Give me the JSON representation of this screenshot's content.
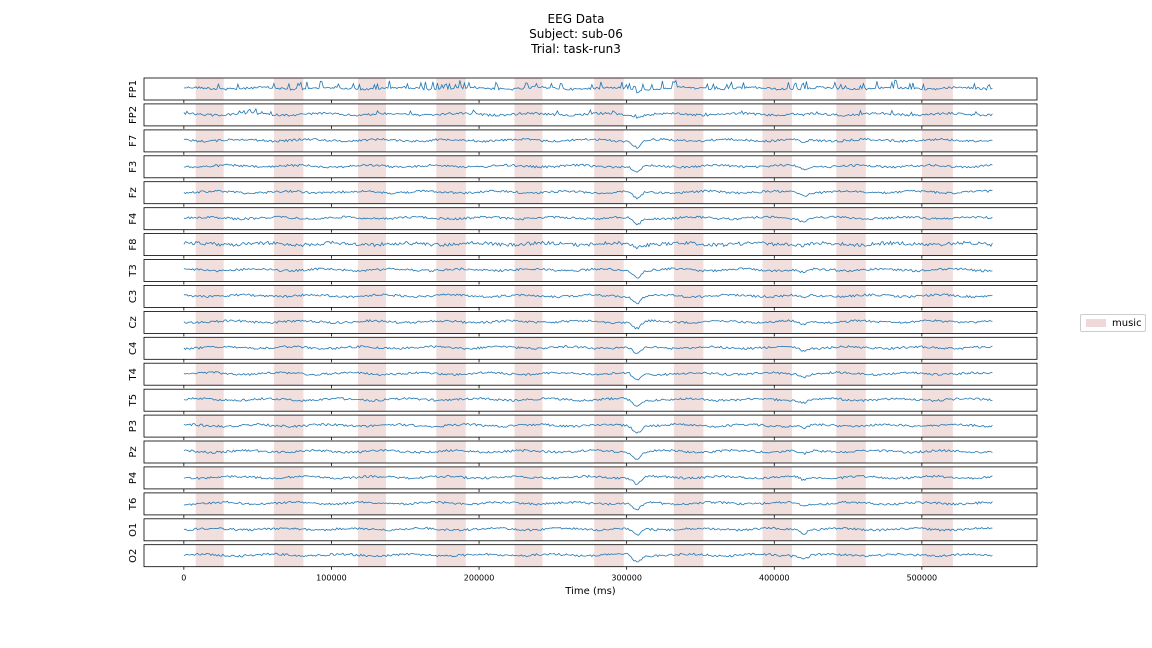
{
  "header": {
    "line1": "EEG Data",
    "line2": "Subject: sub-06",
    "line3": "Trial: task-run3"
  },
  "legend": {
    "label": "music",
    "color": "#efd9d8"
  },
  "chart_data": {
    "type": "line",
    "title": "EEG Data\nSubject: sub-06\nTrial: task-run3",
    "xlabel": "Time (ms)",
    "xlim": [
      -27000,
      578000
    ],
    "x_range": [
      0,
      548000
    ],
    "xticks": [
      0,
      100000,
      200000,
      300000,
      400000,
      500000
    ],
    "xtick_labels": [
      "0",
      "100000",
      "200000",
      "300000",
      "400000",
      "500000"
    ],
    "channels": [
      "FP1",
      "FP2",
      "F7",
      "F3",
      "Fz",
      "F4",
      "F8",
      "T3",
      "C3",
      "Cz",
      "C4",
      "T4",
      "T5",
      "P3",
      "Pz",
      "P4",
      "T6",
      "O1",
      "O2"
    ],
    "series_color": "#1f77b4",
    "music_intervals": [
      [
        8000,
        27000
      ],
      [
        61000,
        81000
      ],
      [
        118000,
        137000
      ],
      [
        171000,
        191000
      ],
      [
        224000,
        243000
      ],
      [
        278000,
        298000
      ],
      [
        332000,
        352000
      ],
      [
        392000,
        412000
      ],
      [
        442000,
        462000
      ],
      [
        500000,
        521000
      ]
    ],
    "events": [
      {
        "x": 307000,
        "description": "large negative deflection in most channels"
      },
      {
        "x": 420000,
        "description": "smaller negative deflection"
      }
    ],
    "legend_entries": [
      "music"
    ],
    "legend_position": "right",
    "grid": false
  }
}
